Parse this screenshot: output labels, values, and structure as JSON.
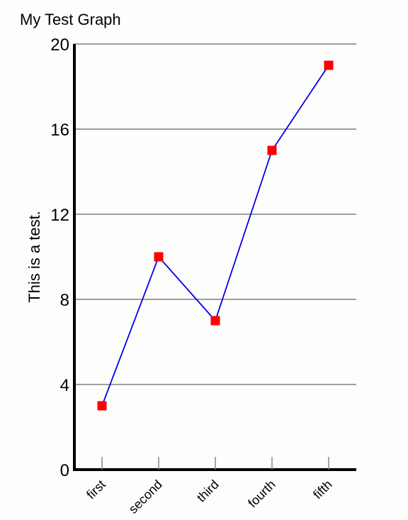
{
  "chart_data": {
    "type": "line",
    "title": "My Test Graph",
    "xlabel": "",
    "ylabel": "This is a test.",
    "categories": [
      "first",
      "second",
      "third",
      "fourth",
      "fifth"
    ],
    "series": [
      {
        "values": [
          3,
          10,
          7,
          15,
          19
        ],
        "color": "#0000ee",
        "marker_color": "#ff0000"
      }
    ],
    "ylim": [
      0,
      20
    ],
    "yticks": [
      0,
      4,
      8,
      12,
      16,
      20
    ],
    "grid": true,
    "legend": "none"
  }
}
